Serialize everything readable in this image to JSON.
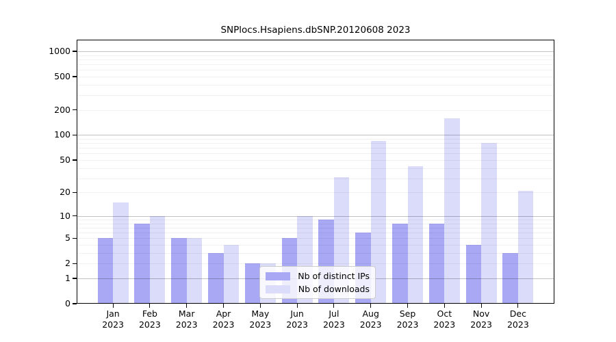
{
  "chart_data": {
    "type": "bar",
    "title": "SNPlocs.Hsapiens.dbSNP.20120608 2023",
    "year_label": "2023",
    "categories": [
      "Jan",
      "Feb",
      "Mar",
      "Apr",
      "May",
      "Jun",
      "Jul",
      "Aug",
      "Sep",
      "Oct",
      "Nov",
      "Dec"
    ],
    "series": [
      {
        "name": "Nb of distinct IPs",
        "color": "#a8a8f4",
        "values": [
          5,
          8,
          5,
          3,
          2,
          5,
          9,
          6,
          8,
          8,
          4,
          3
        ]
      },
      {
        "name": "Nb of downloads",
        "color": "#dbdbfa",
        "values": [
          15,
          10,
          5,
          4,
          2,
          10,
          31,
          85,
          42,
          160,
          80,
          21
        ]
      }
    ],
    "xlabel": "",
    "ylabel": "",
    "y_scale": "log10(1+value)",
    "y_ticks": [
      0,
      1,
      2,
      5,
      10,
      20,
      50,
      100,
      200,
      500,
      1000
    ],
    "ylim": [
      0,
      1370
    ],
    "grid": "horizontal major at powers of 10, faint minors at 2-9 per decade, drawn over bars",
    "legend_position": "inside bottom-center",
    "colors": {
      "background": "#ffffff",
      "axis": "#000000",
      "major_grid": "#c2c2c2",
      "minor_grid": "#f0f0f0",
      "legend_border": "#cccccc"
    }
  }
}
